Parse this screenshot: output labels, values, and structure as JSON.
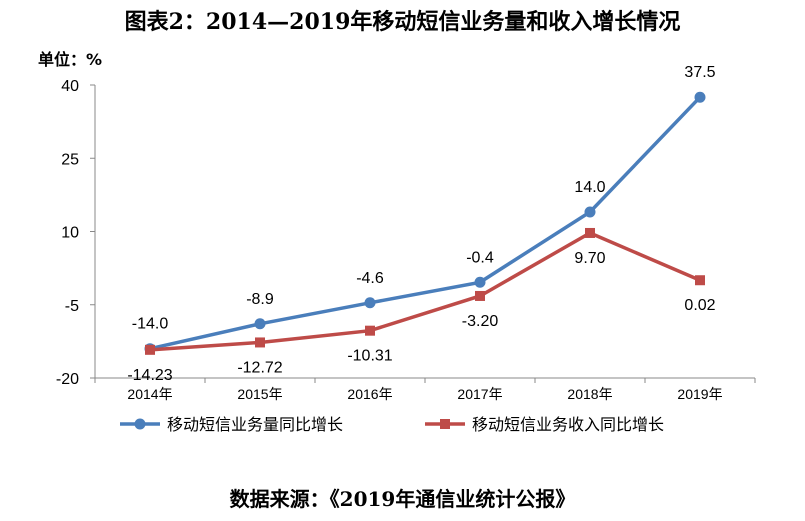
{
  "title": "图表2：2014—2019年移动短信业务量和收入增长情况",
  "unit_label": "单位：%",
  "source": "数据来源：《2019年通信业统计公报》",
  "chart_data": {
    "type": "line",
    "title": "图表2：2014—2019年移动短信业务量和收入增长情况",
    "xlabel": "",
    "ylabel": "单位：%",
    "categories": [
      "2014年",
      "2015年",
      "2016年",
      "2017年",
      "2018年",
      "2019年"
    ],
    "ylim": [
      -20,
      40
    ],
    "yticks": [
      -20,
      -5,
      10,
      25,
      40
    ],
    "grid": false,
    "legend_position": "bottom",
    "series": [
      {
        "name": "移动短信业务量同比增长",
        "color": "#4a7ebb",
        "marker": "circle",
        "values": [
          -14.0,
          -8.9,
          -4.6,
          -0.4,
          14.0,
          37.5
        ],
        "labels": [
          "-14.0",
          "-8.9",
          "-4.6",
          "-0.4",
          "14.0",
          "37.5"
        ],
        "label_pos": "above"
      },
      {
        "name": "移动短信业务收入同比增长",
        "color": "#be4b48",
        "marker": "square",
        "values": [
          -14.23,
          -12.72,
          -10.31,
          -3.2,
          9.7,
          0.02
        ],
        "labels": [
          "-14.23",
          "-12.72",
          "-10.31",
          "-3.20",
          "9.70",
          "0.02"
        ],
        "label_pos": "below"
      }
    ]
  }
}
